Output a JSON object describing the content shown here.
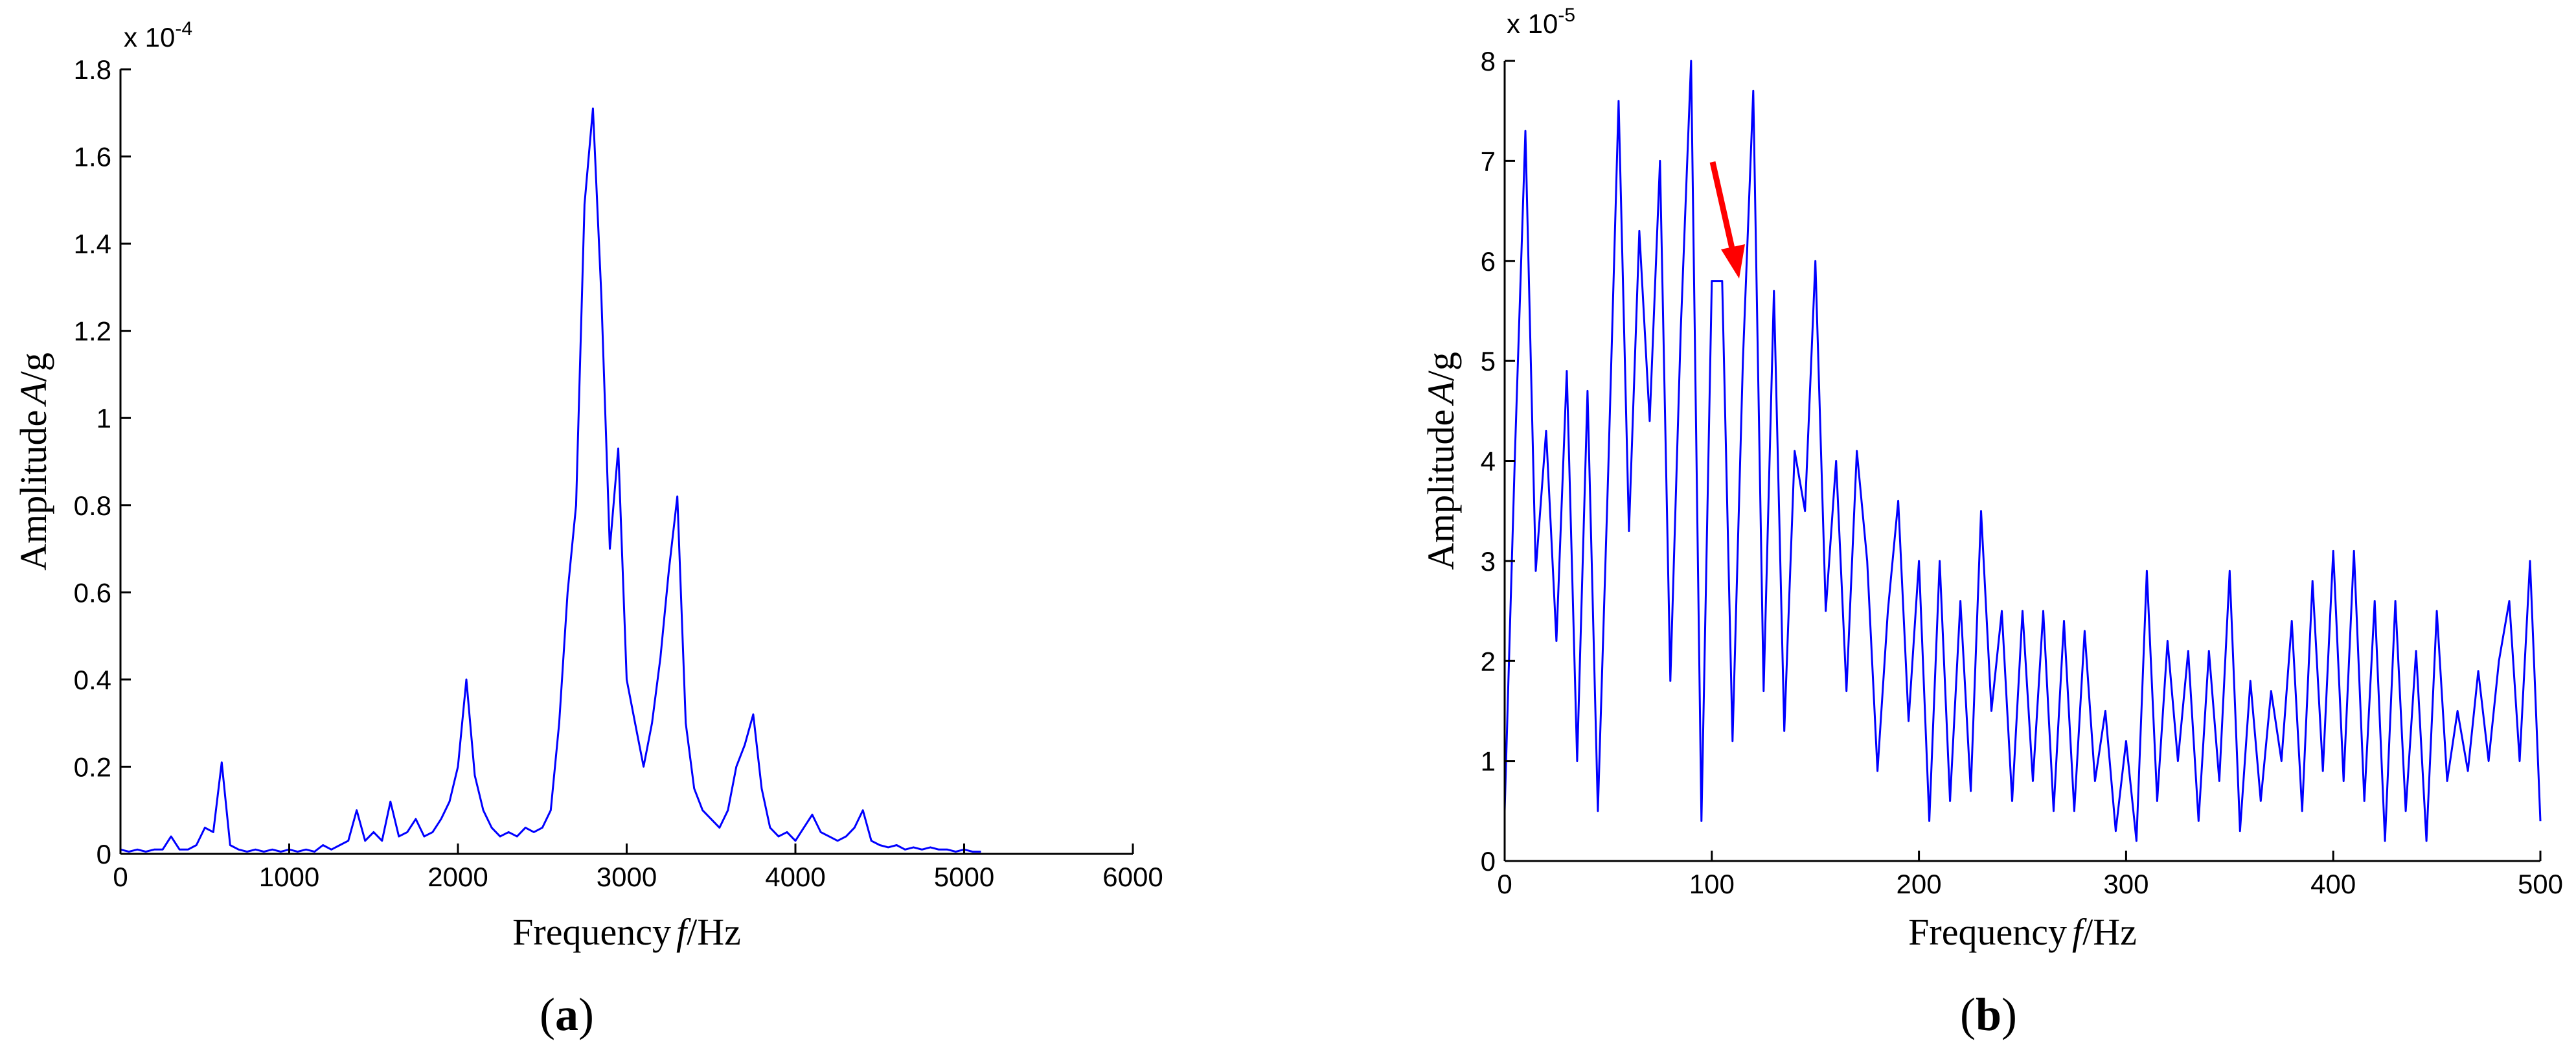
{
  "chart_data": [
    {
      "type": "line",
      "caption": [
        "(",
        "a",
        ")"
      ],
      "xlabel": [
        "Frequency",
        "f",
        "/Hz"
      ],
      "ylabel": [
        "Amplitude",
        "A",
        "/g"
      ],
      "y_multiplier": {
        "base": "x 10",
        "exponent": "-4"
      },
      "xlim": [
        0,
        6000
      ],
      "xticks": [
        0,
        1000,
        2000,
        3000,
        4000,
        5000,
        6000
      ],
      "ylim": [
        0,
        1.8
      ],
      "yticks": [
        0,
        0.2,
        0.4,
        0.6,
        0.8,
        1,
        1.2,
        1.4,
        1.6,
        1.8
      ],
      "series": [
        {
          "color": "#0000ff",
          "x": [
            0,
            50,
            100,
            150,
            200,
            250,
            300,
            350,
            400,
            450,
            500,
            550,
            600,
            650,
            700,
            750,
            800,
            850,
            900,
            950,
            1000,
            1050,
            1100,
            1150,
            1200,
            1250,
            1300,
            1350,
            1400,
            1450,
            1500,
            1550,
            1600,
            1650,
            1700,
            1750,
            1800,
            1850,
            1900,
            1950,
            2000,
            2050,
            2100,
            2150,
            2200,
            2250,
            2300,
            2350,
            2400,
            2450,
            2500,
            2550,
            2600,
            2650,
            2700,
            2750,
            2800,
            2850,
            2900,
            2950,
            3000,
            3050,
            3100,
            3150,
            3200,
            3250,
            3300,
            3350,
            3400,
            3450,
            3500,
            3550,
            3600,
            3650,
            3700,
            3750,
            3800,
            3850,
            3900,
            3950,
            4000,
            4050,
            4100,
            4150,
            4200,
            4250,
            4300,
            4350,
            4400,
            4450,
            4500,
            4550,
            4600,
            4650,
            4700,
            4750,
            4800,
            4850,
            4900,
            4950,
            5000,
            5050,
            5100
          ],
          "values": [
            0.01,
            0.005,
            0.01,
            0.005,
            0.01,
            0.01,
            0.04,
            0.01,
            0.01,
            0.02,
            0.06,
            0.05,
            0.21,
            0.02,
            0.01,
            0.005,
            0.01,
            0.005,
            0.01,
            0.005,
            0.01,
            0.005,
            0.01,
            0.005,
            0.02,
            0.01,
            0.02,
            0.03,
            0.1,
            0.03,
            0.05,
            0.03,
            0.12,
            0.04,
            0.05,
            0.08,
            0.04,
            0.05,
            0.08,
            0.12,
            0.2,
            0.4,
            0.18,
            0.1,
            0.06,
            0.04,
            0.05,
            0.04,
            0.06,
            0.05,
            0.06,
            0.1,
            0.3,
            0.6,
            0.8,
            1.49,
            1.71,
            1.28,
            0.7,
            0.93,
            0.4,
            0.3,
            0.2,
            0.3,
            0.45,
            0.65,
            0.82,
            0.3,
            0.15,
            0.1,
            0.08,
            0.06,
            0.1,
            0.2,
            0.25,
            0.32,
            0.15,
            0.06,
            0.04,
            0.05,
            0.03,
            0.06,
            0.09,
            0.05,
            0.04,
            0.03,
            0.04,
            0.06,
            0.1,
            0.03,
            0.02,
            0.015,
            0.02,
            0.01,
            0.015,
            0.01,
            0.015,
            0.01,
            0.01,
            0.005,
            0.01,
            0.005,
            0.005
          ]
        }
      ]
    },
    {
      "type": "line",
      "caption": [
        "(",
        "b",
        ")"
      ],
      "xlabel": [
        "Frequency",
        "f",
        "/Hz"
      ],
      "ylabel": [
        "Amplitude",
        "A",
        "/g"
      ],
      "y_multiplier": {
        "base": "x 10",
        "exponent": "-5"
      },
      "xlim": [
        0,
        500
      ],
      "xticks": [
        0,
        100,
        200,
        300,
        400,
        500
      ],
      "ylim": [
        0,
        8
      ],
      "yticks": [
        0,
        1,
        2,
        3,
        4,
        5,
        6,
        7,
        8
      ],
      "series": [
        {
          "color": "#0000ff",
          "x": [
            0,
            5,
            10,
            15,
            20,
            25,
            30,
            35,
            40,
            45,
            50,
            55,
            60,
            65,
            70,
            75,
            80,
            85,
            90,
            95,
            100,
            105,
            110,
            115,
            120,
            125,
            130,
            135,
            140,
            145,
            150,
            155,
            160,
            165,
            170,
            175,
            180,
            185,
            190,
            195,
            200,
            205,
            210,
            215,
            220,
            225,
            230,
            235,
            240,
            245,
            250,
            255,
            260,
            265,
            270,
            275,
            280,
            285,
            290,
            295,
            300,
            305,
            310,
            315,
            320,
            325,
            330,
            335,
            340,
            345,
            350,
            355,
            360,
            365,
            370,
            375,
            380,
            385,
            390,
            395,
            400,
            405,
            410,
            415,
            420,
            425,
            430,
            435,
            440,
            445,
            450,
            455,
            460,
            465,
            470,
            475,
            480,
            485,
            490,
            495,
            500
          ],
          "values": [
            0.5,
            4.1,
            7.3,
            2.9,
            4.3,
            2.2,
            4.9,
            1.0,
            4.7,
            0.5,
            3.9,
            7.6,
            3.3,
            6.3,
            4.4,
            7.0,
            1.8,
            5.3,
            8.0,
            0.4,
            5.8,
            5.8,
            1.2,
            5.0,
            7.7,
            1.7,
            5.7,
            1.3,
            4.1,
            3.5,
            6.0,
            2.5,
            4.0,
            1.7,
            4.1,
            3.0,
            0.9,
            2.5,
            3.6,
            1.4,
            3.0,
            0.4,
            3.0,
            0.6,
            2.6,
            0.7,
            3.5,
            1.5,
            2.5,
            0.6,
            2.5,
            0.8,
            2.5,
            0.5,
            2.4,
            0.5,
            2.3,
            0.8,
            1.5,
            0.3,
            1.2,
            0.2,
            2.9,
            0.6,
            2.2,
            1.0,
            2.1,
            0.4,
            2.1,
            0.8,
            2.9,
            0.3,
            1.8,
            0.6,
            1.7,
            1.0,
            2.4,
            0.5,
            2.8,
            0.9,
            3.1,
            0.8,
            3.1,
            0.6,
            2.6,
            0.2,
            2.6,
            0.5,
            2.1,
            0.2,
            2.5,
            0.8,
            1.5,
            0.9,
            1.9,
            1.0,
            2.0,
            2.6,
            1.0,
            3.0,
            0.4
          ]
        }
      ]
    }
  ]
}
